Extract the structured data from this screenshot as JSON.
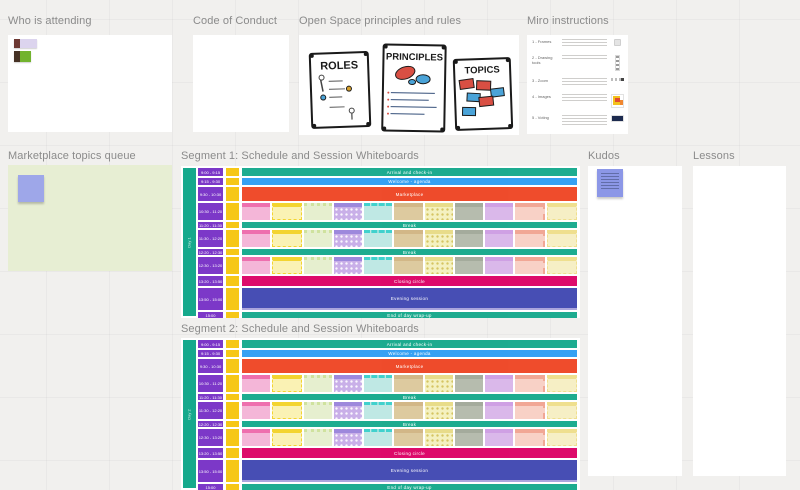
{
  "frames": {
    "who": {
      "title": "Who is attending"
    },
    "code": {
      "title": "Code of Conduct"
    },
    "open_space": {
      "title": "Open Space principles and rules",
      "posters": {
        "roles": "ROLES",
        "principles": "PRINCIPLES",
        "topics": "TOPICS"
      }
    },
    "miro": {
      "title": "Miro instructions",
      "rows": [
        {
          "label": "1 - Frames"
        },
        {
          "label": "2 - Drawing tools"
        },
        {
          "label": "3 - Zoom"
        },
        {
          "label": "4 - Images"
        },
        {
          "label": "5 - Voting"
        }
      ]
    },
    "marketplace": {
      "title": "Marketplace topics queue"
    },
    "segment1": {
      "title": "Segment 1: Schedule and Session Whiteboards",
      "day_label": "Day 1"
    },
    "segment2": {
      "title": "Segment 2: Schedule and Session Whiteboards",
      "day_label": "Day 2"
    },
    "kudos": {
      "title": "Kudos"
    },
    "lessons": {
      "title": "Lessons"
    }
  },
  "schedule": {
    "stripe_color": "#16a98c",
    "timebox_color": "#7c38c8",
    "duration_color": "#f6c716",
    "rows": [
      {
        "kind": "band",
        "h": 8,
        "color": "#16a98c",
        "text": "Arrival and check-in",
        "time": "9:00 - 9:15"
      },
      {
        "kind": "band",
        "h": 7,
        "color": "#2f9ef3",
        "text": "Welcome - agenda",
        "time": "9:15 - 9:30"
      },
      {
        "kind": "band",
        "h": 14,
        "color": "#ee4625",
        "text": "Marketplace",
        "time": "9:30 - 10:30"
      },
      {
        "kind": "cards",
        "h": 17,
        "time": "10:30 - 11:20"
      },
      {
        "kind": "band",
        "h": 6,
        "color": "#16a98c",
        "text": "Break",
        "time": "11:20 - 11:30"
      },
      {
        "kind": "cards",
        "h": 17,
        "time": "11:30 - 12:20"
      },
      {
        "kind": "band",
        "h": 6,
        "color": "#16a98c",
        "text": "Break",
        "time": "12:20 - 12:30"
      },
      {
        "kind": "cards",
        "h": 17,
        "time": "12:30 - 13:20"
      },
      {
        "kind": "band",
        "h": 10,
        "color": "#dc0366",
        "text": "Closing circle",
        "time": "13:20 - 13:50"
      },
      {
        "kind": "band",
        "h": 22,
        "color": "#4249b2",
        "text": "Evening session",
        "time": "13:50 - 15:00",
        "underline": "#a9a3dc"
      },
      {
        "kind": "band",
        "h": 6,
        "color": "#16a98c",
        "text": "End of day wrap-up",
        "time": "15:00"
      }
    ],
    "cards": [
      {
        "body": "#f4b6d8",
        "top": "#ee6fae"
      },
      {
        "body": "#faf2b4",
        "top": "#f3d430",
        "cls": "dashed"
      },
      {
        "body": "#e6efcf",
        "top": "#cfe29e",
        "cls": "dottedt"
      },
      {
        "body": "#c9afe8",
        "top": "#9d88dc",
        "cls": "dots"
      },
      {
        "body": "#bfe8e4",
        "top": "#41d1cd",
        "cls": "dashedt"
      },
      {
        "body": "#ddca9f",
        "top": "#d2b787"
      },
      {
        "body": "#f4f1c0",
        "top": "#e8dc8a",
        "cls": "ydots"
      },
      {
        "body": "#b6bcae",
        "top": "#a4ab9c"
      },
      {
        "body": "#dab8ea",
        "top": "#cfa0e4"
      },
      {
        "body": "#f8d1c6",
        "top": "#f1a795",
        "cls": "dashedr"
      },
      {
        "body": "#f6efc5",
        "top": "#efdf8e",
        "cls": "dashed"
      }
    ]
  },
  "stickies": {
    "marketplace_note_color": "#9ea7e9",
    "kudos_note_color": "#8c97e7"
  }
}
